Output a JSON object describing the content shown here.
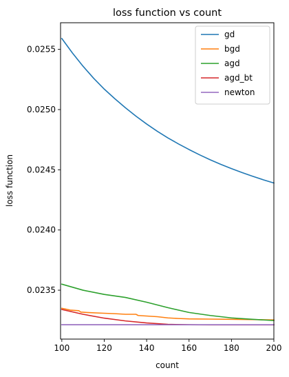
{
  "chart_data": {
    "type": "line",
    "title": "loss function vs count",
    "xlabel": "count",
    "ylabel": "loss function",
    "xlim": [
      99.4,
      200
    ],
    "ylim": [
      0.023094,
      0.025721
    ],
    "xticks": [
      100,
      120,
      140,
      160,
      180,
      200
    ],
    "yticks": [
      0.0235,
      0.024,
      0.0245,
      0.025,
      0.0255
    ],
    "ytick_labels": [
      "0.0235",
      "0.0240",
      "0.0245",
      "0.0250",
      "0.0255"
    ],
    "grid": false,
    "legend_position": "top-right",
    "series": [
      {
        "name": "gd",
        "color": "#1f77b4",
        "x": [
          100,
          105,
          110,
          115,
          120,
          125,
          130,
          135,
          140,
          145,
          150,
          155,
          160,
          165,
          170,
          175,
          180,
          185,
          190,
          195,
          200
        ],
        "y": [
          0.02559,
          0.02547,
          0.02536,
          0.02526,
          0.02517,
          0.02509,
          0.025015,
          0.024945,
          0.02488,
          0.02482,
          0.024765,
          0.024715,
          0.024668,
          0.024624,
          0.024583,
          0.024545,
          0.02451,
          0.024477,
          0.024446,
          0.024417,
          0.02439
        ]
      },
      {
        "name": "bgd",
        "color": "#ff7f0e",
        "x": [
          100,
          104,
          108,
          109,
          112,
          118,
          125,
          130,
          135,
          136,
          145,
          150,
          155,
          160,
          170,
          180,
          190,
          200
        ],
        "y": [
          0.02335,
          0.023335,
          0.02333,
          0.023318,
          0.023315,
          0.02331,
          0.023305,
          0.0233,
          0.0233,
          0.02329,
          0.02328,
          0.02327,
          0.023265,
          0.023262,
          0.02326,
          0.023258,
          0.023256,
          0.023253
        ]
      },
      {
        "name": "agd",
        "color": "#2ca02c",
        "x": [
          100,
          110,
          120,
          130,
          140,
          150,
          160,
          170,
          180,
          190,
          200
        ],
        "y": [
          0.02355,
          0.0235,
          0.023465,
          0.02344,
          0.0234,
          0.023355,
          0.023315,
          0.02329,
          0.02327,
          0.023258,
          0.023248
        ]
      },
      {
        "name": "agd_bt",
        "color": "#d62728",
        "x": [
          100,
          110,
          120,
          130,
          140,
          150,
          160,
          170,
          180,
          190,
          200
        ],
        "y": [
          0.02334,
          0.0233,
          0.023268,
          0.023245,
          0.023228,
          0.023217,
          0.023213,
          0.023212,
          0.023212,
          0.023212,
          0.023212
        ]
      },
      {
        "name": "newton",
        "color": "#9467bd",
        "x": [
          100,
          200
        ],
        "y": [
          0.023213,
          0.023213
        ]
      }
    ]
  }
}
